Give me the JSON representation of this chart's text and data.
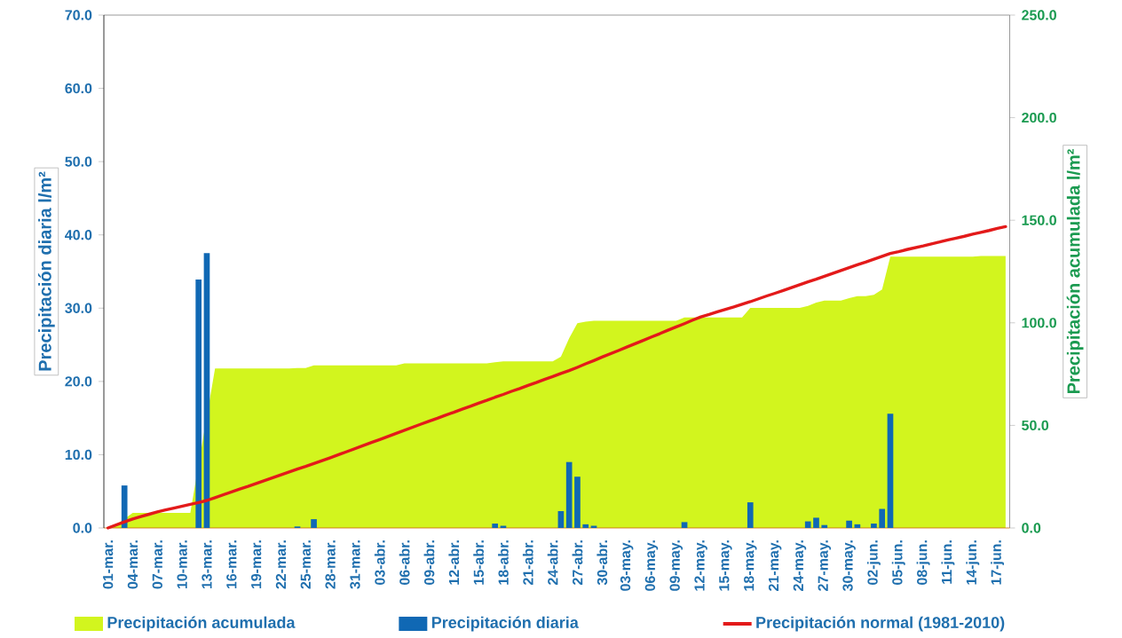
{
  "chart_data": {
    "type": "bar",
    "ylabel": "Precipitación diaria l/m²",
    "y2label": "Precipitación acumulada l/m²",
    "ylim": [
      0,
      70
    ],
    "yticks": [
      {
        "value": 0,
        "label": "0.0"
      },
      {
        "value": 10,
        "label": "10.0"
      },
      {
        "value": 20,
        "label": "20.0"
      },
      {
        "value": 30,
        "label": "30.0"
      },
      {
        "value": 40,
        "label": "40.0"
      },
      {
        "value": 50,
        "label": "50.0"
      },
      {
        "value": 60,
        "label": "60.0"
      },
      {
        "value": 70,
        "label": "70.0"
      }
    ],
    "y2lim": [
      0,
      250
    ],
    "y2ticks": [
      {
        "value": 0,
        "label": "0.0"
      },
      {
        "value": 50,
        "label": "50.0"
      },
      {
        "value": 100,
        "label": "100.0"
      },
      {
        "value": 150,
        "label": "150.0"
      },
      {
        "value": 200,
        "label": "200.0"
      },
      {
        "value": 250,
        "label": "250.0"
      }
    ],
    "legend": "bottom",
    "categories": [
      "01-mar.",
      null,
      null,
      "04-mar.",
      null,
      null,
      "07-mar.",
      null,
      null,
      "10-mar.",
      null,
      null,
      "13-mar.",
      null,
      null,
      "16-mar.",
      null,
      null,
      "19-mar.",
      null,
      null,
      "22-mar.",
      null,
      null,
      "25-mar.",
      null,
      null,
      "28-mar.",
      null,
      null,
      "31-mar.",
      null,
      null,
      "03-abr.",
      null,
      null,
      "06-abr.",
      null,
      null,
      "09-abr.",
      null,
      null,
      "12-abr.",
      null,
      null,
      "15-abr.",
      null,
      null,
      "18-abr.",
      null,
      null,
      "21-abr.",
      null,
      null,
      "24-abr.",
      null,
      null,
      "27-abr.",
      null,
      null,
      "30-abr.",
      null,
      null,
      "03-may.",
      null,
      null,
      "06-may.",
      null,
      null,
      "09-may.",
      null,
      null,
      "12-may.",
      null,
      null,
      "15-may.",
      null,
      null,
      "18-may.",
      null,
      null,
      "21-may.",
      null,
      null,
      "24-may.",
      null,
      null,
      "27-may.",
      null,
      null,
      "30-may.",
      null,
      null,
      "02-jun.",
      null,
      null,
      "05-jun.",
      null,
      null,
      "08-jun.",
      null,
      null,
      "11-jun.",
      null,
      null,
      "14-jun.",
      null,
      null,
      "17-jun.",
      null
    ],
    "series": [
      {
        "name": "Precipitación acumulada",
        "type": "area",
        "axis": "y2",
        "color": "#d2f51e",
        "values": [
          0.3,
          1.5,
          null,
          7.3,
          7.3,
          7.3,
          7.3,
          7.3,
          7.3,
          7.3,
          7.3,
          null,
          null,
          77.8,
          77.8,
          77.8,
          77.8,
          77.8,
          77.8,
          77.8,
          77.8,
          77.8,
          77.8,
          78.0,
          78.0,
          79.3,
          79.3,
          79.3,
          79.3,
          79.3,
          79.3,
          79.3,
          79.3,
          79.3,
          79.3,
          79.3,
          80.2,
          80.2,
          80.2,
          80.2,
          80.2,
          80.2,
          80.2,
          80.2,
          80.2,
          80.2,
          80.2,
          80.8,
          81.2,
          81.2,
          81.2,
          81.2,
          81.2,
          81.2,
          81.2,
          83.5,
          92.5,
          99.8,
          100.6,
          101.0,
          101.0,
          101.0,
          101.0,
          101.0,
          101.0,
          101.0,
          101.0,
          101.0,
          101.0,
          101.0,
          102.6,
          102.6,
          102.6,
          102.6,
          102.6,
          102.6,
          102.6,
          102.6,
          107.3,
          107.3,
          107.3,
          107.3,
          107.3,
          107.3,
          107.3,
          108.2,
          109.9,
          110.8,
          110.8,
          110.8,
          112.0,
          113.0,
          113.0,
          113.6,
          116.2,
          132.2,
          132.2,
          132.2,
          132.2,
          132.2,
          132.2,
          132.2,
          132.2,
          132.2,
          132.2,
          132.2,
          132.6,
          132.6,
          132.6,
          132.6
        ]
      },
      {
        "name": "Precipitación diaria",
        "axis": "y",
        "color": "#1068b4",
        "values": [
          0,
          0,
          5.8,
          0,
          0,
          0,
          0,
          0,
          0,
          0,
          0,
          33.9,
          37.5,
          0,
          0,
          0,
          0,
          0,
          0,
          0,
          0,
          0,
          0,
          0.2,
          0,
          1.2,
          0,
          0,
          0,
          0,
          0,
          0,
          0,
          0,
          0,
          0,
          0,
          0,
          0,
          0,
          0,
          0,
          0,
          0,
          0,
          0,
          0,
          0.6,
          0.3,
          0,
          0,
          0,
          0,
          0,
          0,
          2.3,
          9.0,
          7.0,
          0.5,
          0.3,
          0,
          0,
          0,
          0,
          0,
          0,
          0,
          0,
          0,
          0,
          0.8,
          0,
          0,
          0,
          0,
          0,
          0,
          0,
          3.5,
          0,
          0,
          0,
          0,
          0,
          0,
          0.9,
          1.4,
          0.4,
          0,
          0,
          1.0,
          0.5,
          0,
          0.6,
          2.6,
          15.6,
          0,
          0,
          0,
          0,
          0,
          0,
          0,
          0,
          0,
          0,
          0,
          0,
          0,
          0
        ]
      },
      {
        "name": "Precipitación normal (1981-2010)",
        "type": "line",
        "axis": "y2",
        "color": "#e31a1a",
        "values": [
          0.0,
          1.5,
          3.0,
          4.4,
          5.6,
          6.7,
          7.8,
          8.8,
          9.7,
          10.6,
          11.5,
          12.4,
          13.4,
          14.8,
          16.2,
          17.6,
          19.0,
          20.3,
          21.7,
          23.1,
          24.5,
          25.9,
          27.3,
          28.7,
          30.0,
          31.4,
          32.8,
          34.2,
          35.7,
          37.2,
          38.7,
          40.2,
          41.7,
          43.1,
          44.6,
          46.1,
          47.6,
          49.1,
          50.6,
          52.1,
          53.5,
          55.0,
          56.4,
          57.9,
          59.3,
          60.8,
          62.2,
          63.7,
          65.1,
          66.6,
          68.0,
          69.5,
          70.9,
          72.4,
          73.8,
          75.3,
          76.7,
          78.3,
          80.0,
          81.6,
          83.3,
          84.9,
          86.5,
          88.2,
          89.8,
          91.4,
          93.1,
          94.7,
          96.4,
          98.0,
          99.6,
          101.3,
          102.9,
          104.1,
          105.4,
          106.6,
          107.8,
          109.1,
          110.3,
          111.7,
          113.1,
          114.4,
          115.8,
          117.2,
          118.6,
          120.0,
          121.3,
          122.7,
          124.1,
          125.5,
          126.9,
          128.3,
          129.6,
          131.0,
          132.4,
          133.8,
          134.7,
          135.7,
          136.6,
          137.5,
          138.5,
          139.4,
          140.4,
          141.3,
          142.2,
          143.2,
          144.1,
          145.0,
          146.0,
          146.9
        ]
      }
    ]
  }
}
